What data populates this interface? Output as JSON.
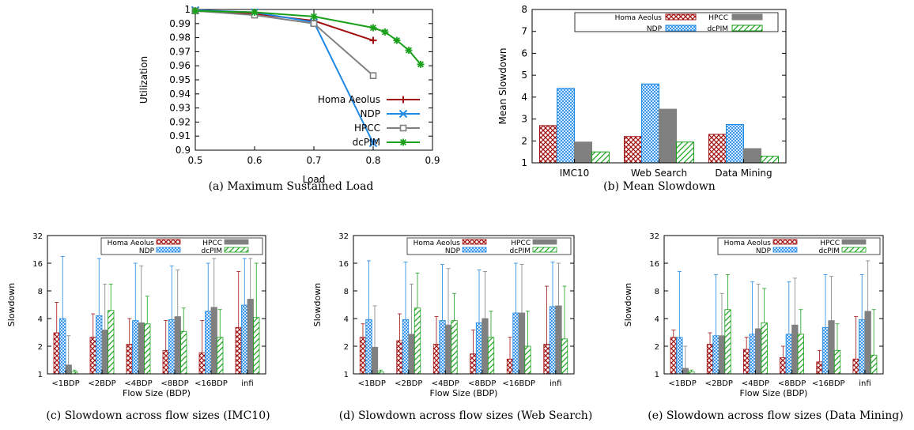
{
  "colors": {
    "homa": "#a01010",
    "ndp": "#1e88e5",
    "hpcc": "#808080",
    "dcpim": "#1aa01a"
  },
  "chart_data": [
    {
      "id": "a",
      "type": "line",
      "caption": "(a)  Maximum Sustained Load",
      "xlabel": "Load",
      "ylabel": "Utilization",
      "xlim": [
        0.5,
        0.9
      ],
      "ylim": [
        0.9,
        1.0
      ],
      "xticks": [
        "0.5",
        "0.6",
        "0.7",
        "0.8",
        "0.9"
      ],
      "yticks": [
        "0.9",
        "0.91",
        "0.92",
        "0.93",
        "0.94",
        "0.95",
        "0.96",
        "0.97",
        "0.98",
        "0.99",
        "1"
      ],
      "legend_position": "bottom-right",
      "series": [
        {
          "name": "Homa Aeolus",
          "key": "homa",
          "marker": "plus",
          "x": [
            0.5,
            0.6,
            0.7,
            0.8
          ],
          "y": [
            0.999,
            0.997,
            0.992,
            0.978
          ]
        },
        {
          "name": "NDP",
          "key": "ndp",
          "marker": "x",
          "x": [
            0.5,
            0.6,
            0.7,
            0.8
          ],
          "y": [
            0.9995,
            0.998,
            0.991,
            0.905
          ]
        },
        {
          "name": "HPCC",
          "key": "hpcc",
          "marker": "square",
          "x": [
            0.5,
            0.6,
            0.7,
            0.8
          ],
          "y": [
            0.999,
            0.996,
            0.99,
            0.953
          ]
        },
        {
          "name": "dcPIM",
          "key": "dcpim",
          "marker": "star",
          "x": [
            0.5,
            0.6,
            0.7,
            0.8,
            0.82,
            0.84,
            0.86,
            0.88
          ],
          "y": [
            0.999,
            0.998,
            0.995,
            0.987,
            0.984,
            0.978,
            0.971,
            0.961
          ]
        }
      ]
    },
    {
      "id": "b",
      "type": "bar",
      "caption": "(b)  Mean Slowdown",
      "xlabel": "",
      "ylabel": "Mean Slowdown",
      "ylim": [
        1,
        8
      ],
      "yticks": [
        "1",
        "2",
        "3",
        "4",
        "5",
        "6",
        "7",
        "8"
      ],
      "categories": [
        "IMC10",
        "Web Search",
        "Data Mining"
      ],
      "legend_position": "top",
      "series": [
        {
          "name": "Homa Aeolus",
          "key": "homa",
          "values": [
            2.7,
            2.2,
            2.3
          ]
        },
        {
          "name": "NDP",
          "key": "ndp",
          "values": [
            4.4,
            4.6,
            2.75
          ]
        },
        {
          "name": "HPCC",
          "key": "hpcc",
          "values": [
            1.95,
            3.45,
            1.65
          ]
        },
        {
          "name": "dcPIM",
          "key": "dcpim",
          "values": [
            1.5,
            1.95,
            1.3
          ]
        }
      ]
    },
    {
      "id": "c",
      "type": "bar",
      "caption": "(c)  Slowdown across flow sizes (IMC10)",
      "xlabel": "Flow Size (BDP)",
      "ylabel": "Slowdown",
      "yscale": "log2",
      "ylim": [
        1,
        32
      ],
      "yticks": [
        "1",
        "2",
        "4",
        "8",
        "16",
        "32"
      ],
      "categories": [
        "<1BDP",
        "<2BDP",
        "<4BDP",
        "<8BDP",
        "<16BDP",
        "infi"
      ],
      "legend_position": "top",
      "series": [
        {
          "name": "Homa Aeolus",
          "key": "homa",
          "values": [
            2.8,
            2.5,
            2.1,
            1.8,
            1.7,
            3.2
          ],
          "err_high": [
            6.0,
            4.5,
            4.0,
            3.8,
            3.8,
            13.0
          ]
        },
        {
          "name": "NDP",
          "key": "ndp",
          "values": [
            4.0,
            4.3,
            3.8,
            3.9,
            4.8,
            5.6
          ],
          "err_high": [
            19.0,
            18.0,
            16.0,
            15.0,
            16.0,
            18.0
          ]
        },
        {
          "name": "HPCC",
          "key": "hpcc",
          "values": [
            1.25,
            3.0,
            3.6,
            4.2,
            5.3,
            6.5
          ],
          "err_high": [
            2.6,
            9.5,
            15.0,
            13.5,
            18.0,
            18.0
          ]
        },
        {
          "name": "dcPIM",
          "key": "dcpim",
          "values": [
            1.05,
            4.9,
            3.5,
            2.9,
            2.5,
            4.1
          ],
          "err_high": [
            1.1,
            9.5,
            7.0,
            5.2,
            5.0,
            16.0
          ]
        }
      ]
    },
    {
      "id": "d",
      "type": "bar",
      "caption": "(d)  Slowdown across flow sizes (Web Search)",
      "xlabel": "Flow Size (BDP)",
      "ylabel": "Slowdown",
      "yscale": "log2",
      "ylim": [
        1,
        32
      ],
      "yticks": [
        "1",
        "2",
        "4",
        "8",
        "16",
        "32"
      ],
      "categories": [
        "<1BDP",
        "<2BDP",
        "<4BDP",
        "<8BDP",
        "<16BDP",
        "infi"
      ],
      "legend_position": "top",
      "series": [
        {
          "name": "Homa Aeolus",
          "key": "homa",
          "values": [
            2.5,
            2.3,
            2.1,
            1.65,
            1.45,
            2.1
          ],
          "err_high": [
            3.5,
            4.5,
            4.2,
            3.0,
            2.5,
            9.0
          ]
        },
        {
          "name": "NDP",
          "key": "ndp",
          "values": [
            3.9,
            3.9,
            3.8,
            3.6,
            4.6,
            5.4
          ],
          "err_high": [
            17.0,
            16.5,
            15.5,
            13.5,
            16.0,
            16.5
          ]
        },
        {
          "name": "HPCC",
          "key": "hpcc",
          "values": [
            1.95,
            2.7,
            3.4,
            4.0,
            4.6,
            5.5
          ],
          "err_high": [
            5.5,
            9.5,
            14.0,
            13.0,
            15.5,
            16.0
          ]
        },
        {
          "name": "dcPIM",
          "key": "dcpim",
          "values": [
            1.05,
            5.2,
            3.8,
            2.5,
            2.0,
            2.4
          ],
          "err_high": [
            1.1,
            12.5,
            7.5,
            4.8,
            4.8,
            9.0
          ]
        }
      ]
    },
    {
      "id": "e",
      "type": "bar",
      "caption": "(e)  Slowdown across flow sizes (Data Mining)",
      "xlabel": "Flow Size (BDP)",
      "ylabel": "Slowdown",
      "yscale": "log2",
      "ylim": [
        1,
        32
      ],
      "yticks": [
        "1",
        "2",
        "4",
        "8",
        "16",
        "32"
      ],
      "categories": [
        "<1BDP",
        "<2BDP",
        "<4BDP",
        "<8BDP",
        "<16BDP",
        "infi"
      ],
      "legend_position": "top",
      "series": [
        {
          "name": "Homa Aeolus",
          "key": "homa",
          "values": [
            2.5,
            2.1,
            1.85,
            1.5,
            1.35,
            1.45
          ],
          "err_high": [
            3.0,
            2.8,
            2.5,
            2.0,
            1.8,
            4.2
          ]
        },
        {
          "name": "NDP",
          "key": "ndp",
          "values": [
            2.5,
            2.6,
            2.7,
            2.7,
            3.2,
            3.9
          ],
          "err_high": [
            13.0,
            12.0,
            10.0,
            10.0,
            12.0,
            12.0
          ]
        },
        {
          "name": "HPCC",
          "key": "hpcc",
          "values": [
            1.15,
            2.6,
            3.1,
            3.4,
            3.8,
            4.8
          ],
          "err_high": [
            2.0,
            7.5,
            9.5,
            11.0,
            11.5,
            17.0
          ]
        },
        {
          "name": "dcPIM",
          "key": "dcpim",
          "values": [
            1.05,
            5.0,
            3.6,
            2.7,
            1.8,
            1.6
          ],
          "err_high": [
            1.1,
            12.0,
            8.5,
            5.0,
            3.5,
            5.0
          ]
        }
      ]
    }
  ]
}
